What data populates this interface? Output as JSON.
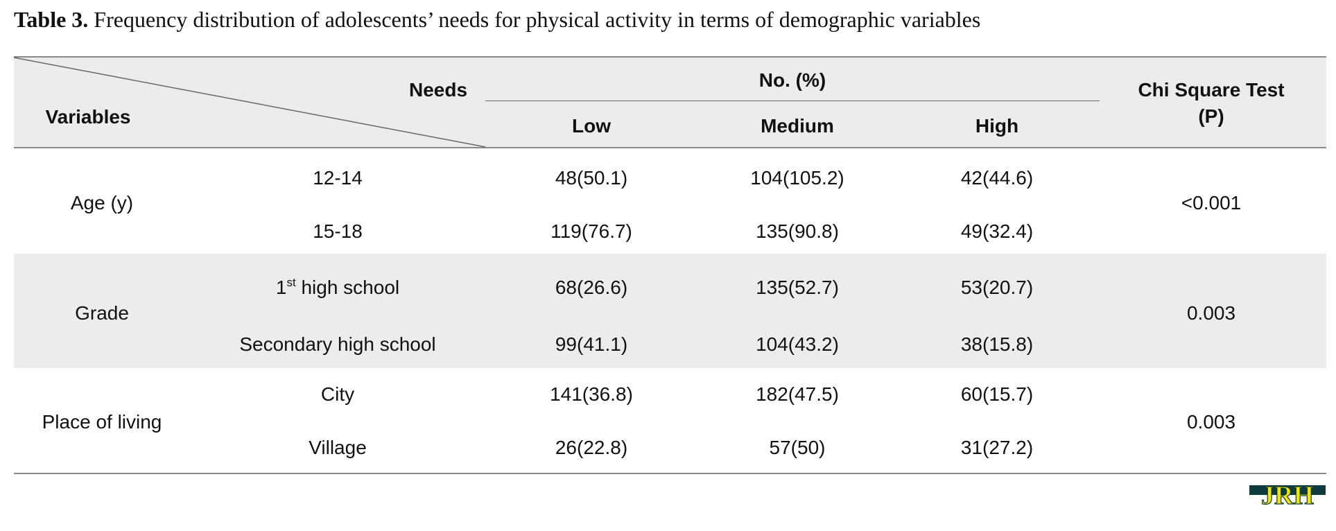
{
  "caption": {
    "label": "Table 3.",
    "text": " Frequency distribution of adolescents’ needs for physical activity in terms of demographic variables"
  },
  "header": {
    "variables": "Variables",
    "needs": "Needs",
    "group": "No. (%)",
    "low": "Low",
    "medium": "Medium",
    "high": "High",
    "chi_line1": "Chi Square Test",
    "chi_line2": "(P)"
  },
  "groups": [
    {
      "variable": "Age (y)",
      "p": "<0.001",
      "rows": [
        {
          "level": "12-14",
          "low": "48(50.1)",
          "medium": "104(105.2)",
          "high": "42(44.6)"
        },
        {
          "level": "15-18",
          "low": "119(76.7)",
          "medium": "135(90.8)",
          "high": "49(32.4)"
        }
      ]
    },
    {
      "variable": "Grade",
      "p": "0.003",
      "rows": [
        {
          "level_num": "1",
          "level_sup": "st",
          "level": " high school",
          "low": "68(26.6)",
          "medium": "135(52.7)",
          "high": "53(20.7)"
        },
        {
          "level": "Secondary high school",
          "low": "99(41.1)",
          "medium": "104(43.2)",
          "high": "38(15.8)"
        }
      ]
    },
    {
      "variable": "Place of living",
      "p": "0.003",
      "rows": [
        {
          "level": "City",
          "low": "141(36.8)",
          "medium": "182(47.5)",
          "high": "60(15.7)"
        },
        {
          "level": "Village",
          "low": "26(22.8)",
          "medium": "57(50)",
          "high": "31(27.2)"
        }
      ]
    }
  ],
  "logo": {
    "text": "JRH",
    "colors": {
      "fill": "#f2e600",
      "dark": "#0d3b3e"
    }
  }
}
